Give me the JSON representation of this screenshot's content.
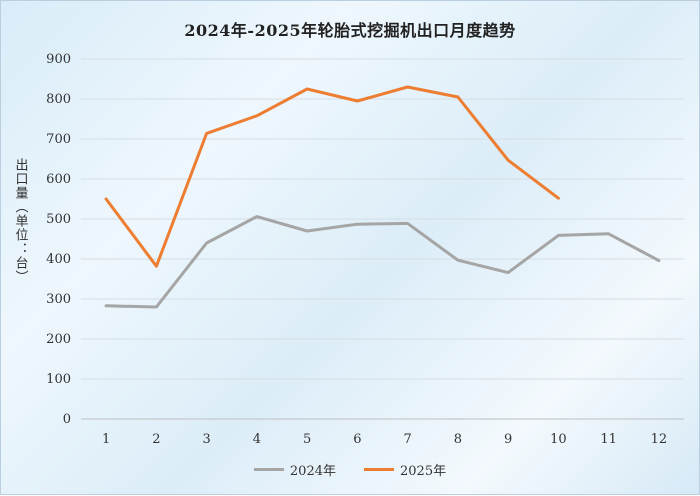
{
  "chart_data": {
    "type": "line",
    "title": "2024年-2025年轮胎式挖掘机出口月度趋势",
    "ylabel": "出口量（单位：台）",
    "xlabel": "",
    "ylim": [
      0,
      900
    ],
    "yticks": [
      0,
      100,
      200,
      300,
      400,
      500,
      600,
      700,
      800,
      900
    ],
    "categories": [
      "1",
      "2",
      "3",
      "4",
      "5",
      "6",
      "7",
      "8",
      "9",
      "10",
      "11",
      "12"
    ],
    "grid": true,
    "legend": "bottom",
    "series": [
      {
        "name": "2024年",
        "color": "#a5a5a5",
        "values": [
          283,
          280,
          440,
          506,
          470,
          487,
          489,
          397,
          366,
          459,
          463,
          396
        ]
      },
      {
        "name": "2025年",
        "color": "#ed7d31",
        "values": [
          550,
          382,
          714,
          758,
          825,
          795,
          830,
          805,
          647,
          552,
          null,
          null
        ]
      }
    ]
  }
}
